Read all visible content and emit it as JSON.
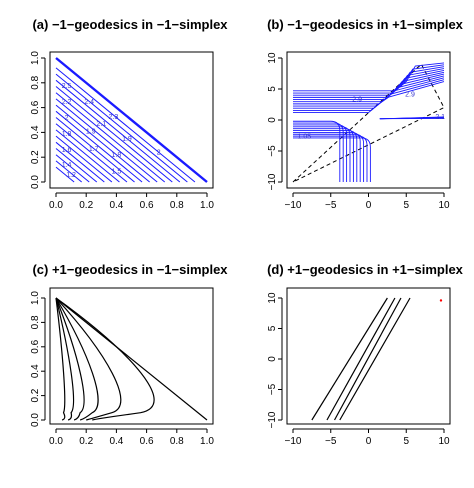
{
  "chart_data": [
    {
      "id": "a",
      "type": "line",
      "title": "(a) −1−geodesics in −1−simplex",
      "xlim": [
        0,
        1
      ],
      "ylim": [
        0,
        1
      ],
      "xticks": [
        0.0,
        0.2,
        0.4,
        0.6,
        0.8,
        1.0
      ],
      "yticks": [
        0.0,
        0.2,
        0.4,
        0.6,
        0.8,
        1.0
      ],
      "xtick_labels": [
        "0.0",
        "0.2",
        "0.4",
        "0.6",
        "0.8",
        "1.0"
      ],
      "ytick_labels": [
        "0.0",
        "0.2",
        "0.4",
        "0.6",
        "0.8",
        "1.0"
      ],
      "line_color": "#1a1aff",
      "simplex_edge": [
        [
          0,
          1
        ],
        [
          1,
          0
        ]
      ],
      "contour_intercepts": [
        0.12,
        0.17,
        0.22,
        0.27,
        0.32,
        0.37,
        0.42,
        0.47,
        0.52,
        0.57,
        0.62,
        0.67,
        0.72,
        0.77,
        0.82,
        0.87,
        0.92
      ],
      "contour_labels": [
        {
          "text": "2.5",
          "x": 0.07,
          "y": 0.76
        },
        {
          "text": "2.2",
          "x": 0.07,
          "y": 0.63
        },
        {
          "text": "2.4",
          "x": 0.22,
          "y": 0.63
        },
        {
          "text": "2.3",
          "x": 0.38,
          "y": 0.51
        },
        {
          "text": "2.1",
          "x": 0.3,
          "y": 0.45
        },
        {
          "text": "2",
          "x": 0.07,
          "y": 0.5
        },
        {
          "text": "1.8",
          "x": 0.07,
          "y": 0.37
        },
        {
          "text": "1.9",
          "x": 0.23,
          "y": 0.39
        },
        {
          "text": "1.6",
          "x": 0.07,
          "y": 0.24
        },
        {
          "text": "1.7",
          "x": 0.25,
          "y": 0.25
        },
        {
          "text": "1.9",
          "x": 0.47,
          "y": 0.33
        },
        {
          "text": "1.8",
          "x": 0.4,
          "y": 0.2
        },
        {
          "text": "1.4",
          "x": 0.07,
          "y": 0.12
        },
        {
          "text": "1.2",
          "x": 0.1,
          "y": 0.04
        },
        {
          "text": "1.5",
          "x": 0.4,
          "y": 0.07
        },
        {
          "text": "2",
          "x": 0.68,
          "y": 0.22
        }
      ]
    },
    {
      "id": "b",
      "type": "line",
      "title": "(b) −1−geodesics in +1−simplex",
      "xlim": [
        -10,
        10
      ],
      "ylim": [
        -10,
        10
      ],
      "xticks": [
        -10,
        -5,
        0,
        5,
        10
      ],
      "yticks": [
        -10,
        -5,
        0,
        5,
        10
      ],
      "xtick_labels": [
        "−10",
        "−5",
        "0",
        "5",
        "10"
      ],
      "ytick_labels": [
        "−10",
        "−5",
        "0",
        "5",
        "10"
      ],
      "line_color": "#1a1aff",
      "dashed_triangle": [
        [
          -10,
          -10
        ],
        [
          7,
          9
        ],
        [
          10,
          2
        ],
        [
          -10,
          -10
        ]
      ],
      "contour_labels": [
        {
          "text": "2.9",
          "x": -1.5,
          "y": 3.0
        },
        {
          "text": "2.9",
          "x": 5.5,
          "y": 3.8
        },
        {
          "text": "2.1",
          "x": 9.5,
          "y": 0.2
        },
        {
          "text": "1.05",
          "x": -8.5,
          "y": -3.0
        }
      ]
    },
    {
      "id": "c",
      "type": "line",
      "title": "(c) +1−geodesics in −1−simplex",
      "xlim": [
        0,
        1
      ],
      "ylim": [
        0,
        1
      ],
      "xticks": [
        0.0,
        0.2,
        0.4,
        0.6,
        0.8,
        1.0
      ],
      "yticks": [
        0.0,
        0.2,
        0.4,
        0.6,
        0.8,
        1.0
      ],
      "xtick_labels": [
        "0.0",
        "0.2",
        "0.4",
        "0.6",
        "0.8",
        "1.0"
      ],
      "ytick_labels": [
        "0.0",
        "0.2",
        "0.4",
        "0.6",
        "0.8",
        "1.0"
      ],
      "line_color": "#000000",
      "curve_peak_x": [
        0.05,
        0.1,
        0.16,
        0.24,
        0.37,
        0.56
      ]
    },
    {
      "id": "d",
      "type": "line",
      "title": "(d) +1−geodesics in +1−simplex",
      "xlim": [
        -10,
        10
      ],
      "ylim": [
        -10,
        10
      ],
      "xticks": [
        -10,
        -5,
        0,
        5,
        10
      ],
      "yticks": [
        -10,
        -5,
        0,
        5,
        10
      ],
      "xtick_labels": [
        "−10",
        "−5",
        "0",
        "5",
        "10"
      ],
      "ytick_labels": [
        "−10",
        "−5",
        "0",
        "5",
        "10"
      ],
      "line_color": "#000000",
      "marker_color": "#ff0000",
      "marker": [
        9.6,
        9.6
      ],
      "lines": [
        {
          "x1": -7.5,
          "y1": -10,
          "x2": 2.5,
          "y2": 10
        },
        {
          "x1": -5.5,
          "y1": -10,
          "x2": 3.5,
          "y2": 10
        },
        {
          "x1": -4.5,
          "y1": -10,
          "x2": 4.3,
          "y2": 10
        },
        {
          "x1": -3.8,
          "y1": -10,
          "x2": 5.5,
          "y2": 10
        }
      ]
    }
  ]
}
